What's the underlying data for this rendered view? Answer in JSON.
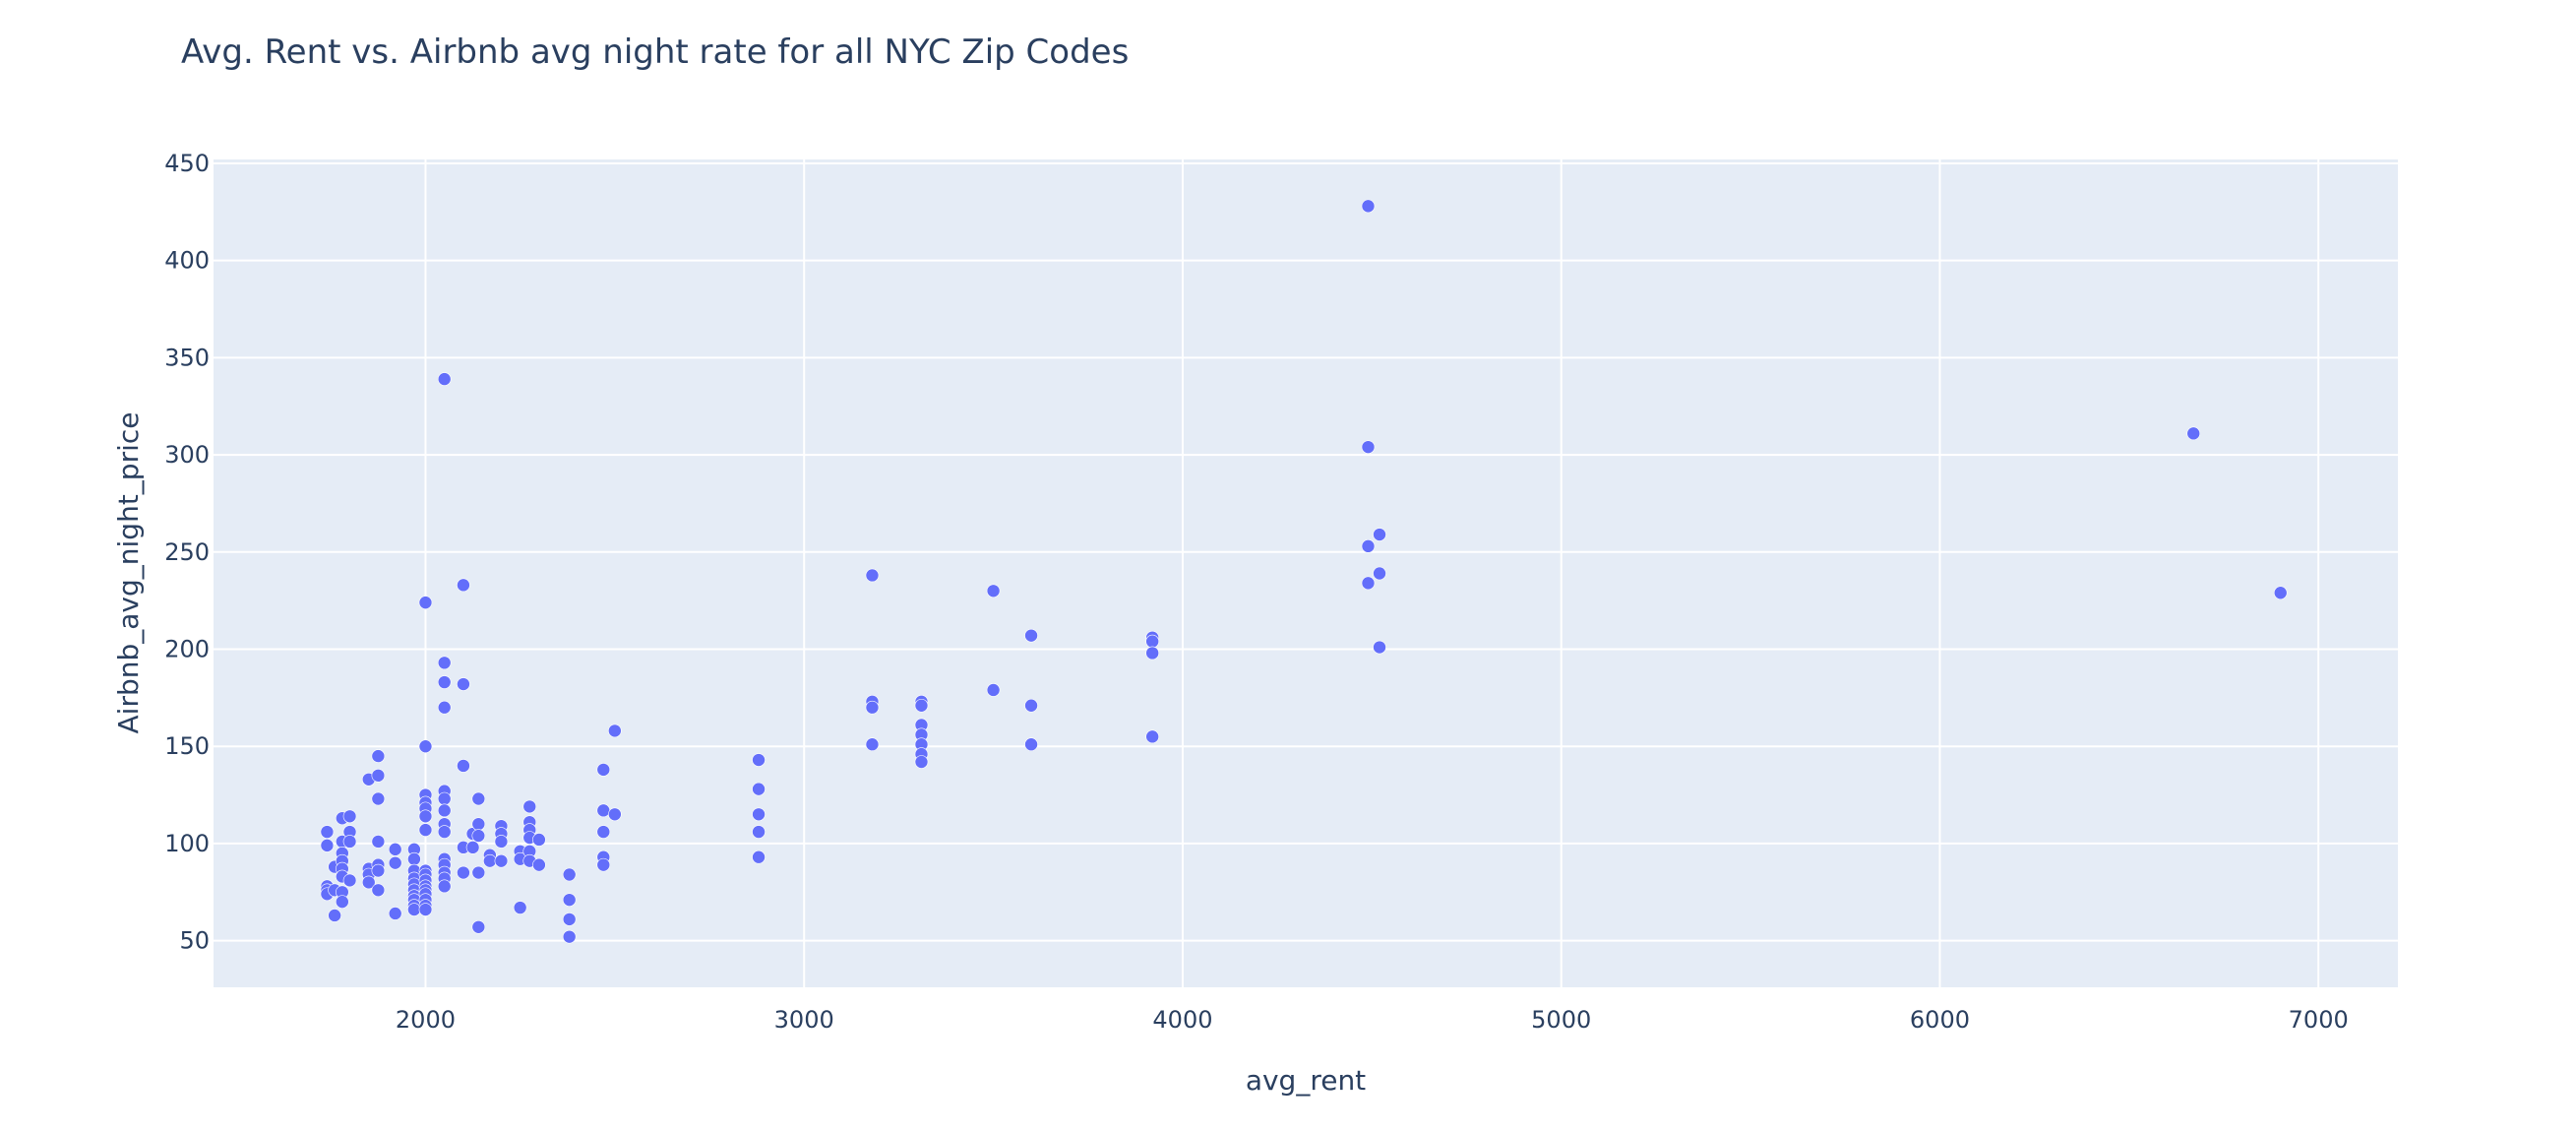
{
  "chart_data": {
    "type": "scatter",
    "title": "Avg. Rent vs. Airbnb avg night rate for all NYC Zip Codes",
    "xlabel": "avg_rent",
    "ylabel": "Airbnb_avg_night_price",
    "xlim": [
      1440,
      7210
    ],
    "ylim": [
      26,
      452
    ],
    "xticks": [
      2000,
      3000,
      4000,
      5000,
      6000,
      7000
    ],
    "yticks": [
      50,
      100,
      150,
      200,
      250,
      300,
      350,
      400,
      450
    ],
    "grid": true,
    "colors": {
      "marker": "#636efa",
      "plot_bg": "#e5ecf6",
      "grid": "#ffffff",
      "text": "#2a3f5f"
    },
    "points": [
      [
        1740,
        106
      ],
      [
        1740,
        99
      ],
      [
        1740,
        78
      ],
      [
        1740,
        76
      ],
      [
        1740,
        74
      ],
      [
        1760,
        88
      ],
      [
        1760,
        76
      ],
      [
        1760,
        63
      ],
      [
        1780,
        113
      ],
      [
        1780,
        101
      ],
      [
        1780,
        95
      ],
      [
        1780,
        91
      ],
      [
        1780,
        87
      ],
      [
        1780,
        83
      ],
      [
        1780,
        75
      ],
      [
        1780,
        70
      ],
      [
        1800,
        114
      ],
      [
        1800,
        106
      ],
      [
        1800,
        101
      ],
      [
        1800,
        81
      ],
      [
        1850,
        133
      ],
      [
        1850,
        87
      ],
      [
        1850,
        84
      ],
      [
        1850,
        80
      ],
      [
        1875,
        145
      ],
      [
        1875,
        135
      ],
      [
        1875,
        123
      ],
      [
        1875,
        101
      ],
      [
        1875,
        89
      ],
      [
        1875,
        86
      ],
      [
        1875,
        76
      ],
      [
        1920,
        97
      ],
      [
        1920,
        90
      ],
      [
        1920,
        64
      ],
      [
        1970,
        97
      ],
      [
        1970,
        92
      ],
      [
        1970,
        86
      ],
      [
        1970,
        82
      ],
      [
        1970,
        79
      ],
      [
        1970,
        76
      ],
      [
        1970,
        73
      ],
      [
        1970,
        71
      ],
      [
        1970,
        68
      ],
      [
        1970,
        66
      ],
      [
        2000,
        224
      ],
      [
        2000,
        150
      ],
      [
        2000,
        125
      ],
      [
        2000,
        121
      ],
      [
        2000,
        118
      ],
      [
        2000,
        114
      ],
      [
        2000,
        107
      ],
      [
        2000,
        86
      ],
      [
        2000,
        84
      ],
      [
        2000,
        81
      ],
      [
        2000,
        78
      ],
      [
        2000,
        76
      ],
      [
        2000,
        74
      ],
      [
        2000,
        71
      ],
      [
        2000,
        68
      ],
      [
        2000,
        66
      ],
      [
        2050,
        339
      ],
      [
        2050,
        193
      ],
      [
        2050,
        183
      ],
      [
        2050,
        170
      ],
      [
        2050,
        127
      ],
      [
        2050,
        123
      ],
      [
        2050,
        117
      ],
      [
        2050,
        110
      ],
      [
        2050,
        106
      ],
      [
        2050,
        92
      ],
      [
        2050,
        89
      ],
      [
        2050,
        85
      ],
      [
        2050,
        82
      ],
      [
        2050,
        78
      ],
      [
        2100,
        233
      ],
      [
        2100,
        182
      ],
      [
        2100,
        140
      ],
      [
        2100,
        98
      ],
      [
        2100,
        85
      ],
      [
        2125,
        105
      ],
      [
        2125,
        98
      ],
      [
        2140,
        123
      ],
      [
        2140,
        110
      ],
      [
        2140,
        104
      ],
      [
        2140,
        85
      ],
      [
        2140,
        57
      ],
      [
        2170,
        94
      ],
      [
        2170,
        91
      ],
      [
        2200,
        109
      ],
      [
        2200,
        105
      ],
      [
        2200,
        101
      ],
      [
        2200,
        91
      ],
      [
        2250,
        96
      ],
      [
        2250,
        92
      ],
      [
        2250,
        67
      ],
      [
        2275,
        119
      ],
      [
        2275,
        111
      ],
      [
        2275,
        107
      ],
      [
        2275,
        103
      ],
      [
        2275,
        96
      ],
      [
        2275,
        91
      ],
      [
        2300,
        102
      ],
      [
        2300,
        89
      ],
      [
        2380,
        84
      ],
      [
        2380,
        71
      ],
      [
        2380,
        61
      ],
      [
        2380,
        52
      ],
      [
        2470,
        138
      ],
      [
        2470,
        117
      ],
      [
        2470,
        106
      ],
      [
        2470,
        93
      ],
      [
        2470,
        89
      ],
      [
        2500,
        158
      ],
      [
        2500,
        115
      ],
      [
        2880,
        143
      ],
      [
        2880,
        128
      ],
      [
        2880,
        115
      ],
      [
        2880,
        106
      ],
      [
        2880,
        93
      ],
      [
        3180,
        238
      ],
      [
        3180,
        173
      ],
      [
        3180,
        170
      ],
      [
        3180,
        151
      ],
      [
        3310,
        173
      ],
      [
        3310,
        171
      ],
      [
        3310,
        161
      ],
      [
        3310,
        156
      ],
      [
        3310,
        151
      ],
      [
        3310,
        146
      ],
      [
        3310,
        142
      ],
      [
        3500,
        230
      ],
      [
        3500,
        179
      ],
      [
        3600,
        207
      ],
      [
        3600,
        171
      ],
      [
        3600,
        151
      ],
      [
        3920,
        206
      ],
      [
        3920,
        204
      ],
      [
        3920,
        198
      ],
      [
        3920,
        155
      ],
      [
        4490,
        428
      ],
      [
        4490,
        304
      ],
      [
        4490,
        253
      ],
      [
        4490,
        234
      ],
      [
        4520,
        259
      ],
      [
        4520,
        239
      ],
      [
        4520,
        201
      ],
      [
        6670,
        311
      ],
      [
        6900,
        229
      ]
    ]
  }
}
